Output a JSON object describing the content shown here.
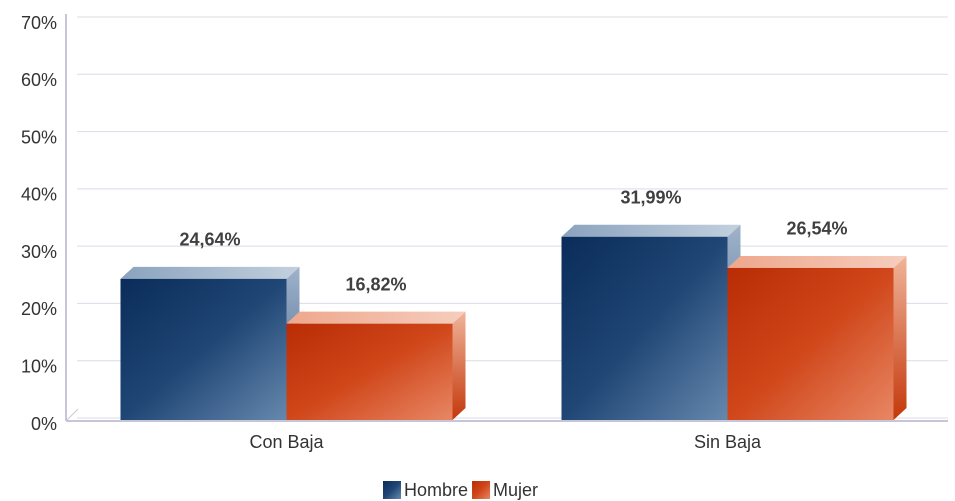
{
  "chart_data": {
    "type": "bar3d",
    "categories": [
      "Con Baja",
      "Sin Baja"
    ],
    "series": [
      {
        "name": "Hombre",
        "color": "#1f4675",
        "values": [
          24.64,
          31.99
        ],
        "value_labels": [
          "24,64%",
          "31,99%"
        ]
      },
      {
        "name": "Mujer",
        "color": "#d0471a",
        "values": [
          16.82,
          26.54
        ],
        "value_labels": [
          "16,82%",
          "26,54%"
        ]
      }
    ],
    "ylim": [
      0,
      70
    ],
    "yticks": [
      {
        "value": 0,
        "label": "0%"
      },
      {
        "value": 10,
        "label": "10%"
      },
      {
        "value": 20,
        "label": "20%"
      },
      {
        "value": 30,
        "label": "30%"
      },
      {
        "value": 40,
        "label": "40%"
      },
      {
        "value": 50,
        "label": "50%"
      },
      {
        "value": 60,
        "label": "60%"
      },
      {
        "value": 70,
        "label": "70%"
      }
    ],
    "grid": true,
    "legend": "bottom"
  }
}
